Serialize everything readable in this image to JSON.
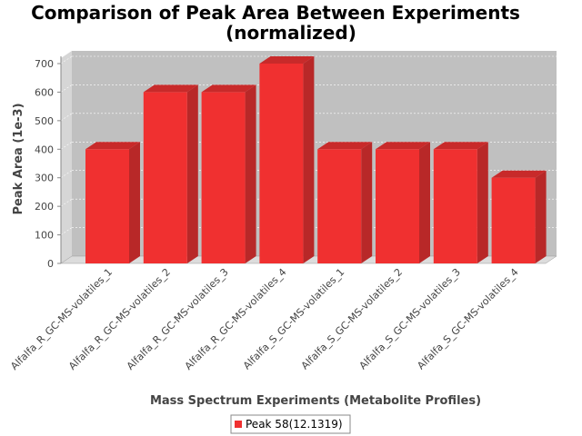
{
  "colors": {
    "bar_front": "#f03030",
    "bar_side": "#b82828",
    "bar_top": "#c82a2a",
    "plot_bg": "#c0c0c0",
    "plot_wall": "#d6d6d6",
    "floor": "#dcdcdc"
  },
  "chart_data": {
    "type": "bar",
    "title": "Comparison of Peak Area Between Experiments",
    "subtitle": "(normalized)",
    "xlabel": "Mass Spectrum Experiments (Metabolite Profiles)",
    "ylabel": "Peak Area (1e-3)",
    "ylim": [
      0,
      700
    ],
    "yticks": [
      0,
      100,
      200,
      300,
      400,
      500,
      600,
      700
    ],
    "categories": [
      "Alfalfa_R_GC-MS-volatiles_1",
      "Alfalfa_R_GC-MS-volatiles_2",
      "Alfalfa_R_GC-MS-volatiles_3",
      "Alfalfa_R_GC-MS-volatiles_4",
      "Alfalfa_S_GC-MS-volatiles_1",
      "Alfalfa_S_GC-MS-volatiles_2",
      "Alfalfa_S_GC-MS-volatiles_3",
      "Alfalfa_S_GC-MS-volatiles_4"
    ],
    "series": [
      {
        "name": "Peak 58(12.1319)",
        "values": [
          400,
          600,
          600,
          700,
          400,
          400,
          400,
          300
        ]
      }
    ],
    "grid": true,
    "legend": "bottom"
  }
}
